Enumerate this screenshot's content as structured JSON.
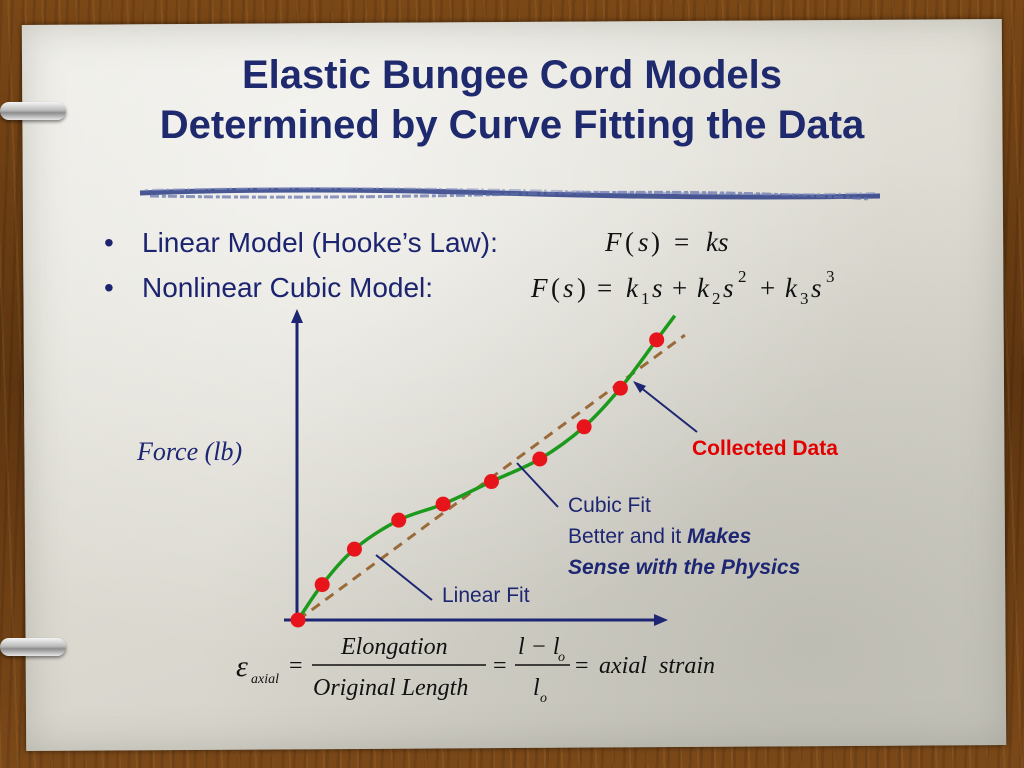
{
  "slide": {
    "title_line1": "Elastic Bungee Cord Models",
    "title_line2": "Determined by Curve Fitting the Data",
    "bullets": [
      {
        "text": "Linear Model (Hooke’s Law):"
      },
      {
        "text": "Nonlinear Cubic Model:"
      }
    ],
    "bullet_glyph": "•"
  },
  "diagram": {
    "y_axis_label": "Force (lb)",
    "annotations": {
      "collected_data": "Collected Data",
      "cubic_fit_line1": "Cubic Fit",
      "cubic_fit_line2_plain": "Better and it ",
      "cubic_fit_line2_bold": "Makes",
      "cubic_fit_line3_bold": "Sense with the Physics",
      "linear_fit": "Linear Fit"
    },
    "colors": {
      "title": "#1f2a6e",
      "text": "#1d2672",
      "data_points": "#e8141c",
      "cubic_fit": "#1c9a1c",
      "linear_fit": "#9a6a38",
      "collected_data_label": "#e30000",
      "axes": "#1d2672"
    },
    "chart_data": {
      "type": "scatter",
      "xlabel": "",
      "ylabel": "Force (lb)",
      "points": [
        {
          "x": 0,
          "y": 0
        },
        {
          "x": 0.6,
          "y": 1.1
        },
        {
          "x": 1.4,
          "y": 2.2
        },
        {
          "x": 2.5,
          "y": 3.1
        },
        {
          "x": 3.6,
          "y": 3.6
        },
        {
          "x": 4.8,
          "y": 4.3
        },
        {
          "x": 6.0,
          "y": 5.0
        },
        {
          "x": 7.1,
          "y": 6.0
        },
        {
          "x": 8.0,
          "y": 7.2
        },
        {
          "x": 8.9,
          "y": 8.7
        }
      ],
      "series": [
        {
          "name": "Cubic Fit",
          "kind": "cubic"
        },
        {
          "name": "Linear Fit",
          "kind": "linear"
        }
      ],
      "xlim": [
        0,
        9.5
      ],
      "ylim": [
        0,
        9.5
      ],
      "grid": false
    }
  },
  "equations": {
    "linear": {
      "lhs": "F",
      "arg": "s",
      "rhs": "ks"
    },
    "cubic": {
      "lhs": "F",
      "arg": "s",
      "k1": "k",
      "k1_sub": "1",
      "k2": "k",
      "k2_sub": "2",
      "k3": "k",
      "k3_sub": "3",
      "var": "s",
      "pow2": "2",
      "pow3": "3"
    },
    "strain": {
      "symbol": "ε",
      "symbol_sub": "axial",
      "frac1_num": "Elongation",
      "frac1_den": "Original Length",
      "frac2_num": "l − l",
      "frac2_num_sub": "o",
      "frac2_den": "l",
      "frac2_den_sub": "o",
      "result": "axial  strain",
      "equals": "="
    }
  }
}
